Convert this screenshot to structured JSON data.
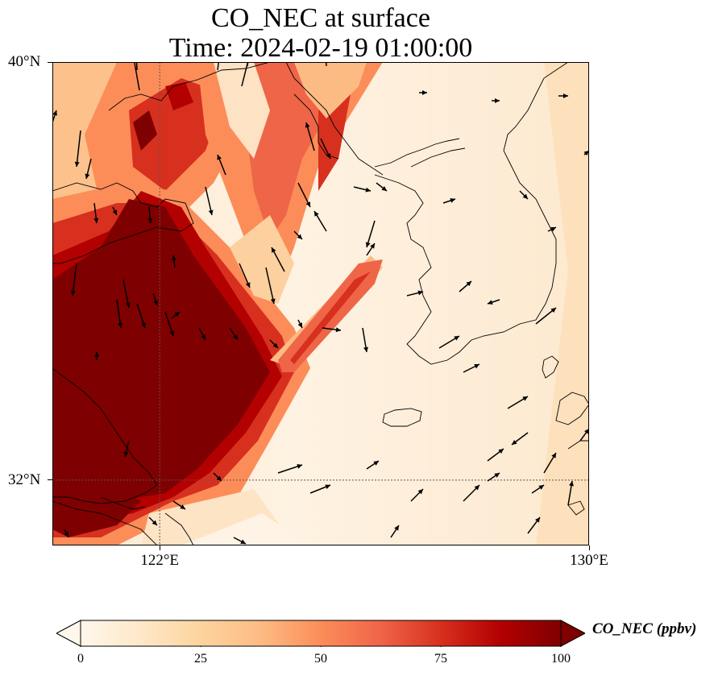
{
  "title": {
    "line1": "CO_NEC at surface",
    "line2": "Time: 2024-02-19 01:00:00"
  },
  "map": {
    "lat_range": [
      30.75,
      40
    ],
    "lon_range": [
      120,
      130
    ],
    "lat_ticks": [
      {
        "value": 40,
        "label": "40°N"
      },
      {
        "value": 32,
        "label": "32°N"
      }
    ],
    "lon_ticks": [
      {
        "value": 122,
        "label": "122°E"
      },
      {
        "value": 130,
        "label": "130°E"
      }
    ],
    "gridlines": "dotted at 122°E and 32°N"
  },
  "colorbar": {
    "label": "CO_NEC (ppbv)",
    "colormap": "OrRd",
    "colors": [
      "#fff7ec",
      "#fee8c8",
      "#fdd49e",
      "#fdbb84",
      "#fc8d59",
      "#ef6548",
      "#d7301f",
      "#b30000",
      "#7f0000"
    ],
    "range": [
      0,
      100
    ],
    "extend": "both",
    "ticks": [
      {
        "value": 0,
        "label": "0"
      },
      {
        "value": 25,
        "label": "25"
      },
      {
        "value": 50,
        "label": "50"
      },
      {
        "value": 75,
        "label": "75"
      },
      {
        "value": 100,
        "label": "100"
      }
    ]
  }
}
